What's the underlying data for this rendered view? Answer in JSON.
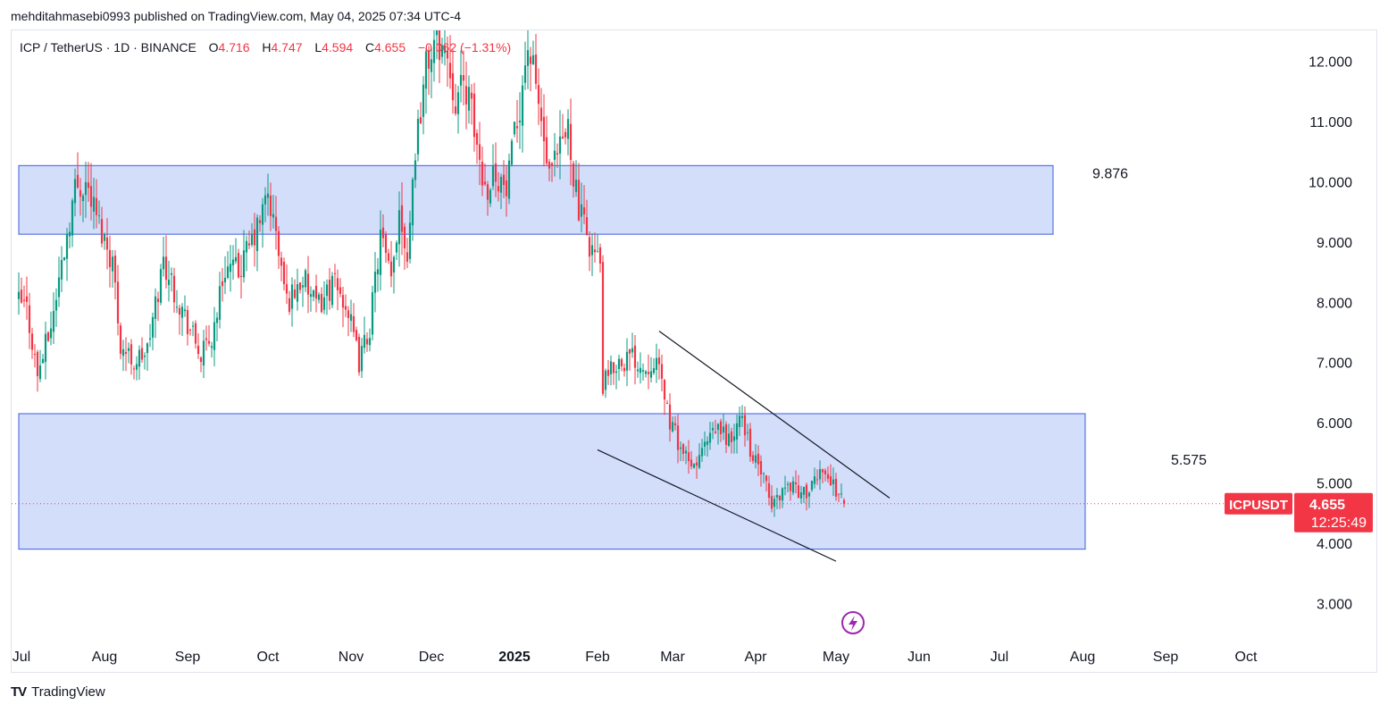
{
  "header": {
    "published_by": "mehditahmasebi0993 published on TradingView.com, May 04, 2025 07:34 UTC-4"
  },
  "legend": {
    "symbol": "ICP / TetherUS · 1D · BINANCE",
    "o_label": "O",
    "o_value": "4.716",
    "h_label": "H",
    "h_value": "4.747",
    "l_label": "L",
    "l_value": "4.594",
    "c_label": "C",
    "c_value": "4.655",
    "change": "−0.062 (−1.31%)"
  },
  "footer": {
    "brand": "TradingView",
    "logo_text": "TV"
  },
  "colors": {
    "up": "#089981",
    "down": "#f23645",
    "zone_fill": "#d1dcfb",
    "zone_border": "#3d5ce0",
    "line": "#131722",
    "price_tag": "#f23645",
    "replay": "#9c27b0"
  },
  "price_tag": {
    "symbol": "ICPUSDT",
    "price": "4.655",
    "countdown": "12:25:49"
  },
  "chart_data": {
    "type": "candlestick",
    "title": "ICP / TetherUS · 1D · BINANCE",
    "y_ticks": [
      "12.000",
      "11.000",
      "10.000",
      "9.000",
      "8.000",
      "7.000",
      "6.000",
      "5.000",
      "4.000",
      "3.000"
    ],
    "ylim": [
      2.5,
      12.5
    ],
    "x_ticks": [
      {
        "label": "Jul",
        "date": "2024-07-01",
        "bold": false
      },
      {
        "label": "Aug",
        "date": "2024-08-01",
        "bold": false
      },
      {
        "label": "Sep",
        "date": "2024-09-01",
        "bold": false
      },
      {
        "label": "Oct",
        "date": "2024-10-01",
        "bold": false
      },
      {
        "label": "Nov",
        "date": "2024-11-01",
        "bold": false
      },
      {
        "label": "Dec",
        "date": "2024-12-01",
        "bold": false
      },
      {
        "label": "2025",
        "date": "2025-01-01",
        "bold": true
      },
      {
        "label": "Feb",
        "date": "2025-02-01",
        "bold": false
      },
      {
        "label": "Mar",
        "date": "2025-03-01",
        "bold": false
      },
      {
        "label": "Apr",
        "date": "2025-04-01",
        "bold": false
      },
      {
        "label": "May",
        "date": "2025-05-01",
        "bold": false
      },
      {
        "label": "Jun",
        "date": "2025-06-01",
        "bold": false
      },
      {
        "label": "Jul",
        "date": "2025-07-01",
        "bold": false
      },
      {
        "label": "Aug",
        "date": "2025-08-01",
        "bold": false
      },
      {
        "label": "Sep",
        "date": "2025-09-01",
        "bold": false
      },
      {
        "label": "Oct",
        "date": "2025-10-01",
        "bold": false
      }
    ],
    "last_price": 4.655,
    "zones": [
      {
        "top": 10.27,
        "bottom": 9.13,
        "start": "2024-06-30",
        "end": "2025-07-21",
        "label": "9.876"
      },
      {
        "top": 6.15,
        "bottom": 3.9,
        "start": "2024-06-30",
        "end": "2025-08-02",
        "label": "5.575"
      }
    ],
    "trendlines": [
      {
        "from": {
          "date": "2025-02-24",
          "price": 7.52
        },
        "to": {
          "date": "2025-05-21",
          "price": 4.75
        }
      },
      {
        "from": {
          "date": "2025-02-01",
          "price": 5.55
        },
        "to": {
          "date": "2025-05-01",
          "price": 3.7
        }
      }
    ],
    "price_path": [
      [
        "2024-06-30",
        8.0
      ],
      [
        "2024-07-03",
        7.9
      ],
      [
        "2024-07-07",
        6.8
      ],
      [
        "2024-07-12",
        7.6
      ],
      [
        "2024-07-17",
        8.9
      ],
      [
        "2024-07-21",
        9.9
      ],
      [
        "2024-07-25",
        10.0
      ],
      [
        "2024-07-30",
        9.3
      ],
      [
        "2024-08-04",
        8.7
      ],
      [
        "2024-08-07",
        7.3
      ],
      [
        "2024-08-12",
        7.0
      ],
      [
        "2024-08-17",
        7.2
      ],
      [
        "2024-08-23",
        8.7
      ],
      [
        "2024-08-28",
        8.1
      ],
      [
        "2024-09-06",
        7.1
      ],
      [
        "2024-09-10",
        7.4
      ],
      [
        "2024-09-15",
        8.6
      ],
      [
        "2024-09-20",
        8.5
      ],
      [
        "2024-09-27",
        9.2
      ],
      [
        "2024-10-01",
        9.8
      ],
      [
        "2024-10-04",
        9.1
      ],
      [
        "2024-10-08",
        8.0
      ],
      [
        "2024-10-14",
        8.4
      ],
      [
        "2024-10-19",
        7.9
      ],
      [
        "2024-10-25",
        8.3
      ],
      [
        "2024-10-30",
        8.0
      ],
      [
        "2024-11-04",
        7.0
      ],
      [
        "2024-11-08",
        7.6
      ],
      [
        "2024-11-12",
        9.1
      ],
      [
        "2024-11-16",
        8.3
      ],
      [
        "2024-11-19",
        9.6
      ],
      [
        "2024-11-22",
        8.8
      ],
      [
        "2024-11-25",
        10.6
      ],
      [
        "2024-11-29",
        11.9
      ],
      [
        "2024-12-03",
        12.4
      ],
      [
        "2024-12-07",
        12.1
      ],
      [
        "2024-12-10",
        11.4
      ],
      [
        "2024-12-14",
        11.6
      ],
      [
        "2024-12-18",
        10.6
      ],
      [
        "2024-12-21",
        9.9
      ],
      [
        "2024-12-25",
        10.2
      ],
      [
        "2024-12-29",
        9.8
      ],
      [
        "2025-01-02",
        11.0
      ],
      [
        "2025-01-06",
        12.3
      ],
      [
        "2025-01-10",
        11.3
      ],
      [
        "2025-01-14",
        10.0
      ],
      [
        "2025-01-18",
        10.5
      ],
      [
        "2025-01-21",
        10.9
      ],
      [
        "2025-01-25",
        9.5
      ],
      [
        "2025-01-29",
        9.0
      ],
      [
        "2025-02-02",
        8.6
      ],
      [
        "2025-02-03",
        6.6
      ],
      [
        "2025-02-08",
        7.0
      ],
      [
        "2025-02-14",
        7.1
      ],
      [
        "2025-02-19",
        6.9
      ],
      [
        "2025-02-22",
        7.1
      ],
      [
        "2025-02-26",
        6.5
      ],
      [
        "2025-02-28",
        6.0
      ],
      [
        "2025-03-04",
        5.6
      ],
      [
        "2025-03-08",
        5.2
      ],
      [
        "2025-03-13",
        5.6
      ],
      [
        "2025-03-18",
        5.9
      ],
      [
        "2025-03-23",
        5.7
      ],
      [
        "2025-03-27",
        6.1
      ],
      [
        "2025-03-31",
        5.4
      ],
      [
        "2025-04-03",
        5.2
      ],
      [
        "2025-04-07",
        4.6
      ],
      [
        "2025-04-11",
        4.9
      ],
      [
        "2025-04-15",
        5.0
      ],
      [
        "2025-04-18",
        4.8
      ],
      [
        "2025-04-22",
        4.9
      ],
      [
        "2025-04-26",
        5.3
      ],
      [
        "2025-04-29",
        5.0
      ],
      [
        "2025-05-02",
        4.85
      ],
      [
        "2025-05-04",
        4.655
      ]
    ]
  }
}
